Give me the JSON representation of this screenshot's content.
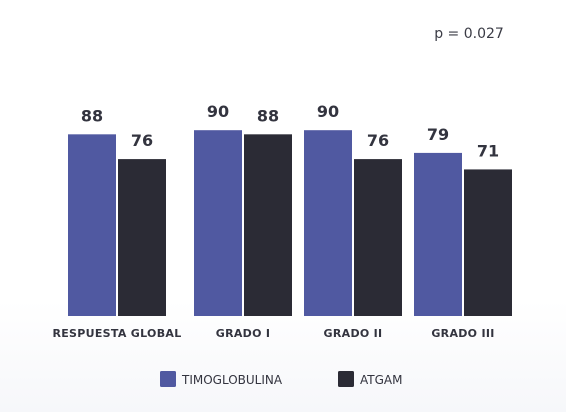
{
  "chart_data": {
    "type": "bar",
    "title": "",
    "xlabel": "",
    "ylabel": "",
    "annotation": "p = 0.027",
    "categories": [
      "RESPUESTA GLOBAL",
      "GRADO I",
      "GRADO II",
      "GRADO III"
    ],
    "series": [
      {
        "name": "TIMOGLOBULINA",
        "color": "#5059a1",
        "values": [
          88,
          90,
          90,
          79
        ]
      },
      {
        "name": "ATGAM",
        "color": "#2b2b35",
        "values": [
          76,
          88,
          76,
          71
        ]
      }
    ],
    "ylim": [
      0,
      93
    ],
    "grid": false,
    "legend": "bottom"
  }
}
